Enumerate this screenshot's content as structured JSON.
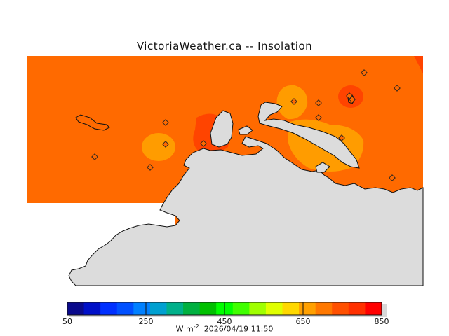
{
  "title": "VictoriaWeather.ca  --  Insolation",
  "colorbar": {
    "colors": [
      "#0a0a8c",
      "#0010c8",
      "#0030ff",
      "#0050ff",
      "#0080ff",
      "#00a0d0",
      "#00b08a",
      "#00b040",
      "#00c000",
      "#00ff00",
      "#40ff00",
      "#a0ff00",
      "#e0ff00",
      "#ffd800",
      "#ffa000",
      "#ff7800",
      "#ff5000",
      "#ff3000",
      "#ff0000"
    ],
    "tick_labels": [
      "50",
      "250",
      "450",
      "650",
      "850"
    ],
    "unit_label": "W m",
    "unit_exp": "-2",
    "timestamp": "2026/04/19 11:50"
  },
  "map": {
    "field_color": "#ff6a00",
    "warm_color": "#ff4400",
    "cool_color": "#ff9c00",
    "land_color": "#dcdcdc",
    "station_count": 14
  }
}
